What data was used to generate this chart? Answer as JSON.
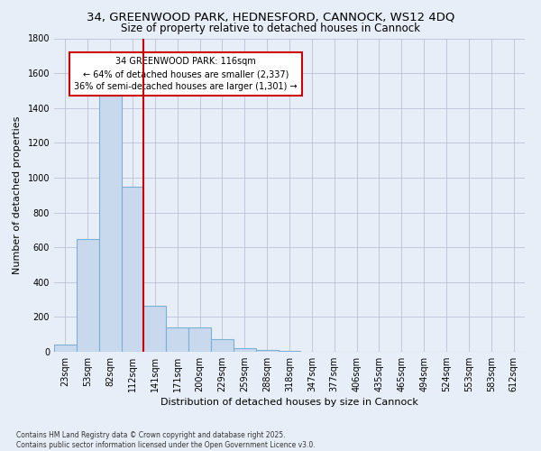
{
  "title_line1": "34, GREENWOOD PARK, HEDNESFORD, CANNOCK, WS12 4DQ",
  "title_line2": "Size of property relative to detached houses in Cannock",
  "xlabel": "Distribution of detached houses by size in Cannock",
  "ylabel": "Number of detached properties",
  "categories": [
    "23sqm",
    "53sqm",
    "82sqm",
    "112sqm",
    "141sqm",
    "171sqm",
    "200sqm",
    "229sqm",
    "259sqm",
    "288sqm",
    "318sqm",
    "347sqm",
    "377sqm",
    "406sqm",
    "435sqm",
    "465sqm",
    "494sqm",
    "524sqm",
    "553sqm",
    "583sqm",
    "612sqm"
  ],
  "values": [
    40,
    650,
    1490,
    950,
    265,
    140,
    140,
    75,
    20,
    8,
    3,
    2,
    1,
    0,
    0,
    0,
    0,
    0,
    0,
    0,
    0
  ],
  "bar_color": "#c9d9ed",
  "bar_edge_color": "#7bafd4",
  "vline_color": "#cc0000",
  "vline_x_index": 3,
  "annotation_text": "34 GREENWOOD PARK: 116sqm\n← 64% of detached houses are smaller (2,337)\n36% of semi-detached houses are larger (1,301) →",
  "annotation_box_color": "#ffffff",
  "annotation_box_edge": "#cc0000",
  "ylim": [
    0,
    1800
  ],
  "yticks": [
    0,
    200,
    400,
    600,
    800,
    1000,
    1200,
    1400,
    1600,
    1800
  ],
  "background_color": "#e8eef7",
  "footnote": "Contains HM Land Registry data © Crown copyright and database right 2025.\nContains public sector information licensed under the Open Government Licence v3.0.",
  "title_fontsize": 9.5,
  "subtitle_fontsize": 8.5,
  "tick_fontsize": 7,
  "label_fontsize": 8,
  "footnote_fontsize": 5.5
}
